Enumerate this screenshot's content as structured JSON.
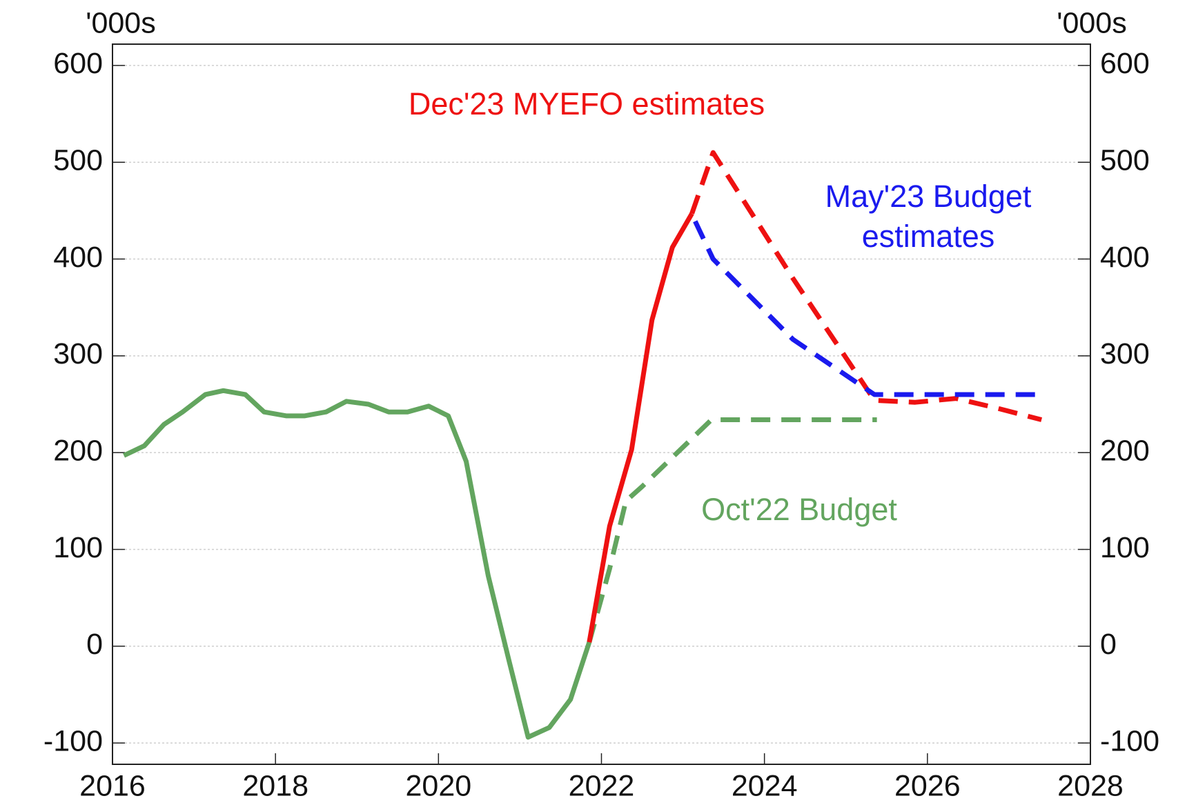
{
  "chart_data": {
    "type": "line",
    "y_unit_left": "'000s",
    "y_unit_right": "'000s",
    "xlim": [
      2016,
      2028
    ],
    "xticks": [
      2016,
      2018,
      2020,
      2022,
      2024,
      2026,
      2028
    ],
    "ylim": [
      -122,
      622
    ],
    "yticks": [
      -100,
      0,
      100,
      200,
      300,
      400,
      500,
      600
    ],
    "y2lim": [
      -122,
      622
    ],
    "y2ticks": [
      -100,
      0,
      100,
      200,
      300,
      400,
      500,
      600
    ],
    "grid": true,
    "series": [
      {
        "color": "#ee1111",
        "dashed": true,
        "x": [
          2023.11,
          2023.37,
          2024.35,
          2025.35,
          2025.85,
          2026.35,
          2026.85,
          2027.4
        ],
        "values": [
          447,
          510,
          380,
          254,
          252,
          256,
          246,
          234
        ]
      },
      {
        "color": "#1a1aee",
        "dashed": true,
        "x": [
          2023.15,
          2023.37,
          2024.35,
          2025.35,
          2027.4
        ],
        "values": [
          439,
          400,
          317,
          260,
          260
        ]
      },
      {
        "color": "#63a55f",
        "dashed": true,
        "x": [
          2021.85,
          2022.1,
          2022.3,
          2022.5,
          2023.35,
          2025.38
        ],
        "values": [
          4,
          80,
          150,
          165,
          234,
          234
        ]
      },
      {
        "color": "#ee1111",
        "dashed": false,
        "x": [
          2021.85,
          2022.1,
          2022.37,
          2022.62,
          2022.87,
          2023.11
        ],
        "values": [
          4,
          124,
          203,
          337,
          412,
          447
        ]
      },
      {
        "color": "#63a55f",
        "dashed": false,
        "x": [
          2016.14,
          2016.39,
          2016.63,
          2016.86,
          2017.14,
          2017.36,
          2017.63,
          2017.86,
          2018.13,
          2018.36,
          2018.62,
          2018.87,
          2019.14,
          2019.39,
          2019.62,
          2019.88,
          2020.12,
          2020.34,
          2020.61,
          2020.86,
          2021.1,
          2021.36,
          2021.62,
          2021.85
        ],
        "values": [
          197,
          207,
          229,
          242,
          260,
          264,
          260,
          242,
          238,
          238,
          242,
          253,
          250,
          242,
          242,
          248,
          238,
          191,
          73,
          -13,
          -94,
          -84,
          -55,
          4
        ]
      }
    ],
    "annotations": [
      {
        "lines": [
          "Dec'23 MYEFO estimates"
        ],
        "color": "#ee1111"
      },
      {
        "lines": [
          "May'23 Budget",
          "estimates"
        ],
        "color": "#1a1aee"
      },
      {
        "lines": [
          "Oct'22 Budget"
        ],
        "color": "#63a55f"
      }
    ]
  }
}
